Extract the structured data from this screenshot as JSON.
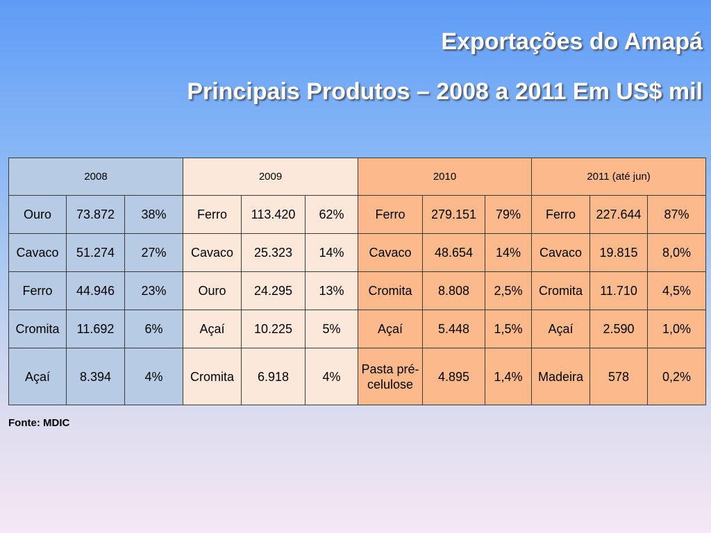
{
  "title": "Exportações do Amapá",
  "subtitle": "Principais Produtos – 2008 a 2011  Em US$ mil",
  "years": [
    {
      "label": "2008",
      "rows": [
        {
          "product": "Ouro",
          "value": "73.872",
          "share": "38%"
        },
        {
          "product": "Cavaco",
          "value": "51.274",
          "share": "27%"
        },
        {
          "product": "Ferro",
          "value": "44.946",
          "share": "23%"
        },
        {
          "product": "Cromita",
          "value": "11.692",
          "share": "6%"
        },
        {
          "product": "Açaí",
          "value": "8.394",
          "share": "4%"
        }
      ]
    },
    {
      "label": "2009",
      "rows": [
        {
          "product": "Ferro",
          "value": "113.420",
          "share": "62%"
        },
        {
          "product": "Cavaco",
          "value": "25.323",
          "share": "14%"
        },
        {
          "product": "Ouro",
          "value": "24.295",
          "share": "13%"
        },
        {
          "product": "Açaí",
          "value": "10.225",
          "share": "5%"
        },
        {
          "product": "Cromita",
          "value": "6.918",
          "share": "4%"
        }
      ]
    },
    {
      "label": "2010",
      "rows": [
        {
          "product": "Ferro",
          "value": "279.151",
          "share": "79%"
        },
        {
          "product": "Cavaco",
          "value": "48.654",
          "share": "14%"
        },
        {
          "product": "Cromita",
          "value": "8.808",
          "share": "2,5%"
        },
        {
          "product": "Açaí",
          "value": "5.448",
          "share": "1,5%"
        },
        {
          "product": "Pasta pré-celulose",
          "value": "4.895",
          "share": "1,4%"
        }
      ]
    },
    {
      "label": "2011 (até jun)",
      "rows": [
        {
          "product": "Ferro",
          "value": "227.644",
          "share": "87%"
        },
        {
          "product": "Cavaco",
          "value": "19.815",
          "share": "8,0%"
        },
        {
          "product": "Cromita",
          "value": "11.710",
          "share": "4,5%"
        },
        {
          "product": "Açaí",
          "value": "2.590",
          "share": "1,0%"
        },
        {
          "product": "Madeira",
          "value": "578",
          "share": "0,2%"
        }
      ]
    }
  ],
  "source": "Fonte: MDIC",
  "colors": {
    "y2008": "#b7cbe4",
    "y2009": "#fce7db",
    "y2010": "#fbb98c",
    "y2011": "#fbb98c"
  }
}
